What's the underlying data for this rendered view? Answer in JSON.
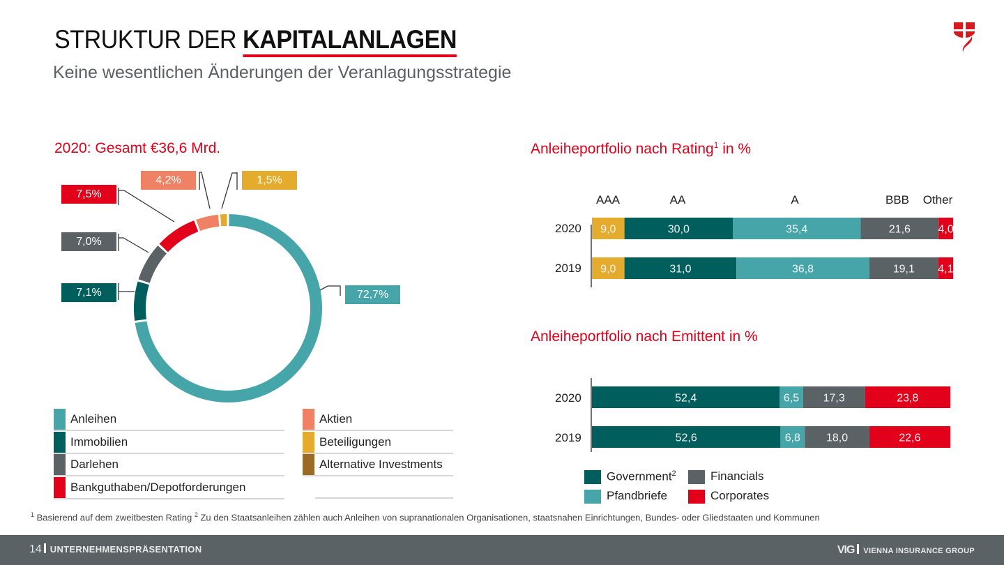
{
  "header": {
    "title_regular": "STRUKTUR DER ",
    "title_bold": "KAPITALANLAGEN",
    "subtitle": "Keine wesentlichen Änderungen der Veranlagungsstrategie",
    "logo_icon": "vig-shield-logo-icon"
  },
  "colors": {
    "accent_red": "#e2001a",
    "teal": "#45a5a8",
    "dark_teal": "#005f5c",
    "dark_gray": "#5b6266",
    "salmon": "#ef8265",
    "gold": "#e5ab2c",
    "brown": "#9b6a24"
  },
  "chart_data": [
    {
      "type": "pie",
      "variant": "donut",
      "title": "2020: Gesamt €36,6 Mrd.",
      "start": "top",
      "direction": "clockwise",
      "slices": [
        {
          "name": "Anleihen",
          "value": 72.7,
          "label": "72,7%",
          "color": "#45a5a8"
        },
        {
          "name": "Immobilien",
          "value": 7.1,
          "label": "7,1%",
          "color": "#005f5c"
        },
        {
          "name": "Darlehen",
          "value": 7.0,
          "label": "7,0%",
          "color": "#5b6266"
        },
        {
          "name": "Bankguthaben/Depotforderungen",
          "value": 7.5,
          "label": "7,5%",
          "color": "#e2001a"
        },
        {
          "name": "Aktien",
          "value": 4.2,
          "label": "4,2%",
          "color": "#ef8265"
        },
        {
          "name": "Beteiligungen",
          "value": 1.5,
          "label": "1,5%",
          "color": "#e5ab2c"
        }
      ],
      "legend": [
        {
          "name": "Anleihen",
          "color": "#45a5a8",
          "column": "left"
        },
        {
          "name": "Immobilien",
          "color": "#005f5c",
          "column": "left"
        },
        {
          "name": "Darlehen",
          "color": "#5b6266",
          "column": "left"
        },
        {
          "name": "Bankguthaben/Depotforderungen",
          "color": "#e2001a",
          "column": "left"
        },
        {
          "name": "Aktien",
          "color": "#ef8265",
          "column": "right"
        },
        {
          "name": "Beteiligungen",
          "color": "#e5ab2c",
          "column": "right"
        },
        {
          "name": "Alternative Investments",
          "color": "#9b6a24",
          "column": "right"
        }
      ],
      "legend_placement": "bottom"
    },
    {
      "type": "bar",
      "orientation": "horizontal",
      "stacked": true,
      "title": "Anleiheportfolio nach Rating",
      "title_superscript": "1",
      "title_suffix": " in %",
      "categories": [
        "2020",
        "2019"
      ],
      "series": [
        {
          "name": "AAA",
          "color": "#e5ab2c",
          "values": [
            9.0,
            9.0
          ],
          "labels": [
            "9,0",
            "9,0"
          ]
        },
        {
          "name": "AA",
          "color": "#005f5c",
          "values": [
            30.0,
            31.0
          ],
          "labels": [
            "30,0",
            "31,0"
          ]
        },
        {
          "name": "A",
          "color": "#45a5a8",
          "values": [
            35.4,
            36.8
          ],
          "labels": [
            "35,4",
            "36,8"
          ]
        },
        {
          "name": "BBB",
          "color": "#5b6266",
          "values": [
            21.6,
            19.1
          ],
          "labels": [
            "21,6",
            "19,1"
          ]
        },
        {
          "name": "Other",
          "color": "#e2001a",
          "values": [
            4.0,
            4.1
          ],
          "labels": [
            "4,0",
            "4,1"
          ]
        }
      ],
      "xlim": [
        0,
        100
      ],
      "grid": false,
      "legend_placement": "top"
    },
    {
      "type": "bar",
      "orientation": "horizontal",
      "stacked": true,
      "title": "Anleiheportfolio nach Emittent in %",
      "categories": [
        "2020",
        "2019"
      ],
      "series": [
        {
          "name": "Government",
          "superscript": "2",
          "color": "#005f5c",
          "values": [
            52.4,
            52.6
          ],
          "labels": [
            "52,4",
            "52,6"
          ]
        },
        {
          "name": "Pfandbriefe",
          "color": "#45a5a8",
          "values": [
            6.5,
            6.8
          ],
          "labels": [
            "6,5",
            "6,8"
          ]
        },
        {
          "name": "Financials",
          "color": "#5b6266",
          "values": [
            17.3,
            18.0
          ],
          "labels": [
            "17,3",
            "18,0"
          ]
        },
        {
          "name": "Corporates",
          "color": "#e2001a",
          "values": [
            23.8,
            22.6
          ],
          "labels": [
            "23,8",
            "22,6"
          ]
        }
      ],
      "xlim": [
        0,
        100
      ],
      "grid": false,
      "legend_placement": "bottom"
    }
  ],
  "footnote": {
    "n1": "1",
    "t1": " Basierend auf dem zweitbesten Rating  ",
    "n2": "2",
    "t2": " Zu den Staatsanleihen zählen auch Anleihen von supranationalen Organisationen, staatsnahen Einrichtungen, Bundes- oder Gliedstaaten und Kommunen"
  },
  "footer": {
    "page_number": "14",
    "section": "UNTERNEHMENSPRÄSENTATION",
    "brand_short": "VIG",
    "brand_full": "VIENNA INSURANCE GROUP"
  }
}
